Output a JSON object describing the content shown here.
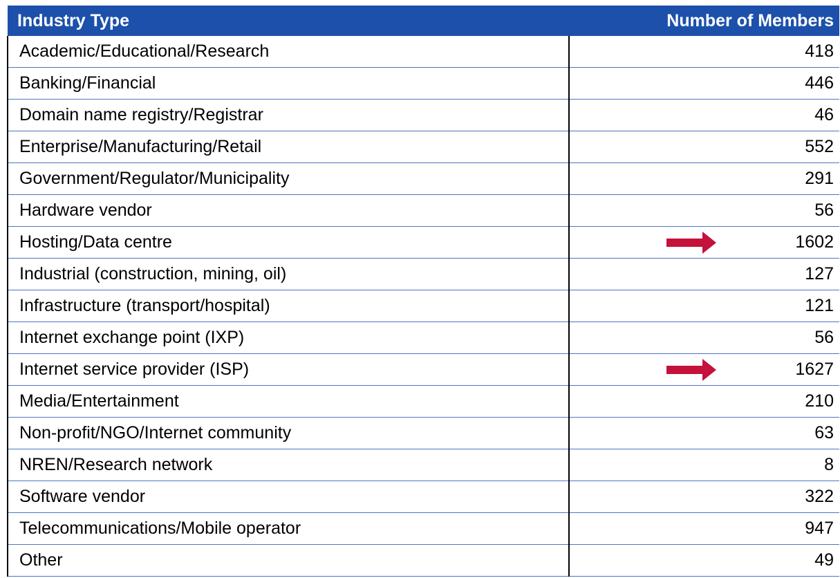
{
  "table": {
    "header": [
      "Industry Type",
      "Number of Members"
    ],
    "rows": [
      [
        "Academic/Educational/Research",
        418
      ],
      [
        "Banking/Financial",
        446
      ],
      [
        "Domain name registry/Registrar",
        46
      ],
      [
        "Enterprise/Manufacturing/Retail",
        552
      ],
      [
        "Government/Regulator/Municipality",
        291
      ],
      [
        "Hardware vendor",
        56
      ],
      [
        "Hosting/Data centre",
        1602
      ],
      [
        "Industrial (construction, mining, oil)",
        127
      ],
      [
        "Infrastructure (transport/hospital)",
        121
      ],
      [
        "Internet exchange point (IXP)",
        56
      ],
      [
        "Internet service provider (ISP)",
        1627
      ],
      [
        "Media/Entertainment",
        210
      ],
      [
        "Non-profit/NGO/Internet community",
        63
      ],
      [
        "NREN/Research network",
        8
      ],
      [
        "Software vendor",
        322
      ],
      [
        "Telecommunications/Mobile operator",
        947
      ],
      [
        "Other",
        49
      ]
    ]
  }
}
